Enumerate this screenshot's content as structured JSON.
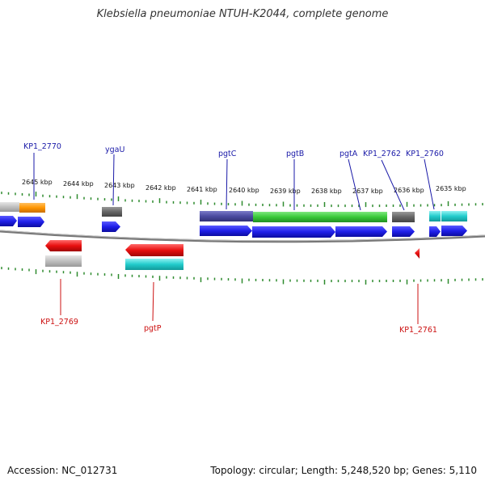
{
  "title": "Klebsiella pneumoniae NTUH-K2044, complete genome",
  "footer": {
    "accession": "Accession: NC_012731",
    "summary": "Topology: circular; Length: 5,248,520 bp; Genes: 5,110"
  },
  "ruler": {
    "ticks": [
      "2645 kbp",
      "2644 kbp",
      "2643 kbp",
      "2642 kbp",
      "2641 kbp",
      "2640 kbp",
      "2639 kbp",
      "2638 kbp",
      "2637 kbp",
      "2636 kbp",
      "2635 kbp"
    ]
  },
  "genes_top": [
    {
      "name": "KP1_2770",
      "color": "#1a1aa8"
    },
    {
      "name": "ygaU",
      "color": "#1a1aa8"
    },
    {
      "name": "pgtC",
      "color": "#1a1aa8"
    },
    {
      "name": "pgtB",
      "color": "#1a1aa8"
    },
    {
      "name": "pgtA",
      "color": "#1a1aa8"
    },
    {
      "name": "KP1_2762",
      "color": "#1a1aa8"
    },
    {
      "name": "KP1_2760",
      "color": "#1a1aa8"
    }
  ],
  "genes_bottom": [
    {
      "name": "KP1_2769",
      "color": "#cc1010"
    },
    {
      "name": "pgtP",
      "color": "#cc1010"
    },
    {
      "name": "KP1_2761",
      "color": "#cc1010"
    }
  ],
  "colors": {
    "cds_forward": "#1f1fe8",
    "cds_reverse": "#e81010",
    "tick_green": "#2e8b2e",
    "backbone": "#777777",
    "feature_gray": "#666666",
    "feature_lightgray": "#bfbfbf",
    "feature_orange": "#ff9500",
    "feature_purple": "#4a4aa0",
    "feature_green": "#38c838",
    "feature_cyan": "#22cccc"
  }
}
